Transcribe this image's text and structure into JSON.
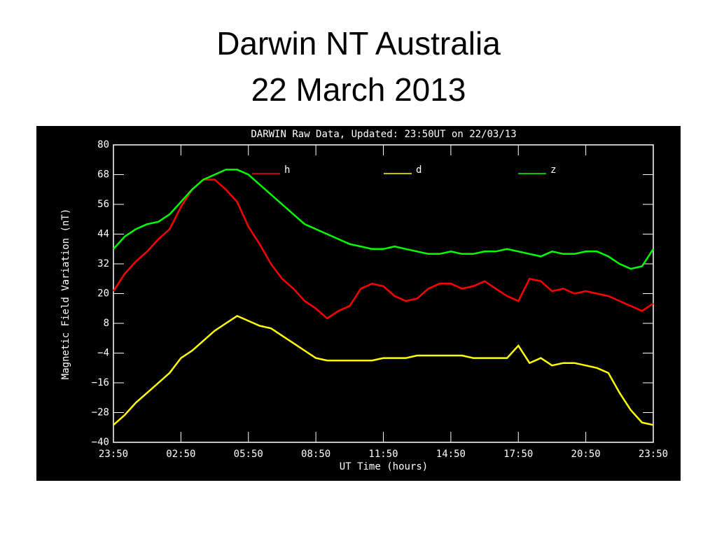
{
  "slide": {
    "title": [
      "Darwin NT Australia",
      "22 March 2013"
    ]
  },
  "chart_data": {
    "type": "line",
    "title": "DARWIN Raw Data, Updated: 23:50UT on 22/03/13",
    "x_label": "UT Time (hours)",
    "y_label": "Magnetic Field Variation (nT)",
    "x": [
      0,
      0.5,
      1,
      1.5,
      2,
      2.5,
      3,
      3.5,
      4,
      4.5,
      5,
      5.5,
      6,
      6.5,
      7,
      7.5,
      8,
      8.5,
      9,
      9.5,
      10,
      10.5,
      11,
      11.5,
      12,
      12.5,
      13,
      13.5,
      14,
      14.5,
      15,
      15.5,
      16,
      16.5,
      17,
      17.5,
      18,
      18.5,
      19,
      19.5,
      20,
      20.5,
      21,
      21.5,
      22,
      22.5,
      23,
      23.5,
      24
    ],
    "xlim": [
      0,
      24
    ],
    "xticks": [
      {
        "value": 0,
        "label": "23:50"
      },
      {
        "value": 3,
        "label": "02:50"
      },
      {
        "value": 6,
        "label": "05:50"
      },
      {
        "value": 9,
        "label": "08:50"
      },
      {
        "value": 12,
        "label": "11:50"
      },
      {
        "value": 15,
        "label": "14:50"
      },
      {
        "value": 18,
        "label": "17:50"
      },
      {
        "value": 21,
        "label": "20:50"
      },
      {
        "value": 24,
        "label": "23:50"
      }
    ],
    "ylim": [
      -40,
      80
    ],
    "yticks": [
      {
        "value": -40,
        "label": "−40"
      },
      {
        "value": -28,
        "label": "−28"
      },
      {
        "value": -16,
        "label": "−16"
      },
      {
        "value": -4,
        "label": "−4"
      },
      8,
      20,
      32,
      44,
      56,
      68,
      80
    ],
    "series": [
      {
        "name": "h",
        "color": "#ff0000",
        "values": [
          21,
          28,
          33,
          37,
          42,
          46,
          55,
          62,
          66,
          66,
          62,
          57,
          47,
          40,
          32,
          26,
          22,
          17,
          14,
          10,
          13,
          15,
          22,
          24,
          23,
          19,
          17,
          18,
          22,
          24,
          24,
          22,
          23,
          25,
          22,
          19,
          17,
          26,
          25,
          21,
          22,
          20,
          21,
          20,
          19,
          17,
          15,
          13,
          16
        ]
      },
      {
        "name": "d",
        "color": "#ffff00",
        "values": [
          -33,
          -29,
          -24,
          -20,
          -16,
          -12,
          -6,
          -3,
          1,
          5,
          8,
          11,
          9,
          7,
          6,
          3,
          0,
          -3,
          -6,
          -7,
          -7,
          -7,
          -7,
          -7,
          -6,
          -6,
          -6,
          -5,
          -5,
          -5,
          -5,
          -5,
          -6,
          -6,
          -6,
          -6,
          -1,
          -8,
          -6,
          -9,
          -8,
          -8,
          -9,
          -10,
          -12,
          -20,
          -27,
          -32,
          -33
        ]
      },
      {
        "name": "z",
        "color": "#00ff00",
        "values": [
          38,
          43,
          46,
          48,
          49,
          52,
          57,
          62,
          66,
          68,
          70,
          70,
          68,
          64,
          60,
          56,
          52,
          48,
          46,
          44,
          42,
          40,
          39,
          38,
          38,
          39,
          38,
          37,
          36,
          36,
          37,
          36,
          36,
          37,
          37,
          38,
          37,
          36,
          35,
          37,
          36,
          36,
          37,
          37,
          35,
          32,
          30,
          31,
          38
        ]
      }
    ]
  }
}
